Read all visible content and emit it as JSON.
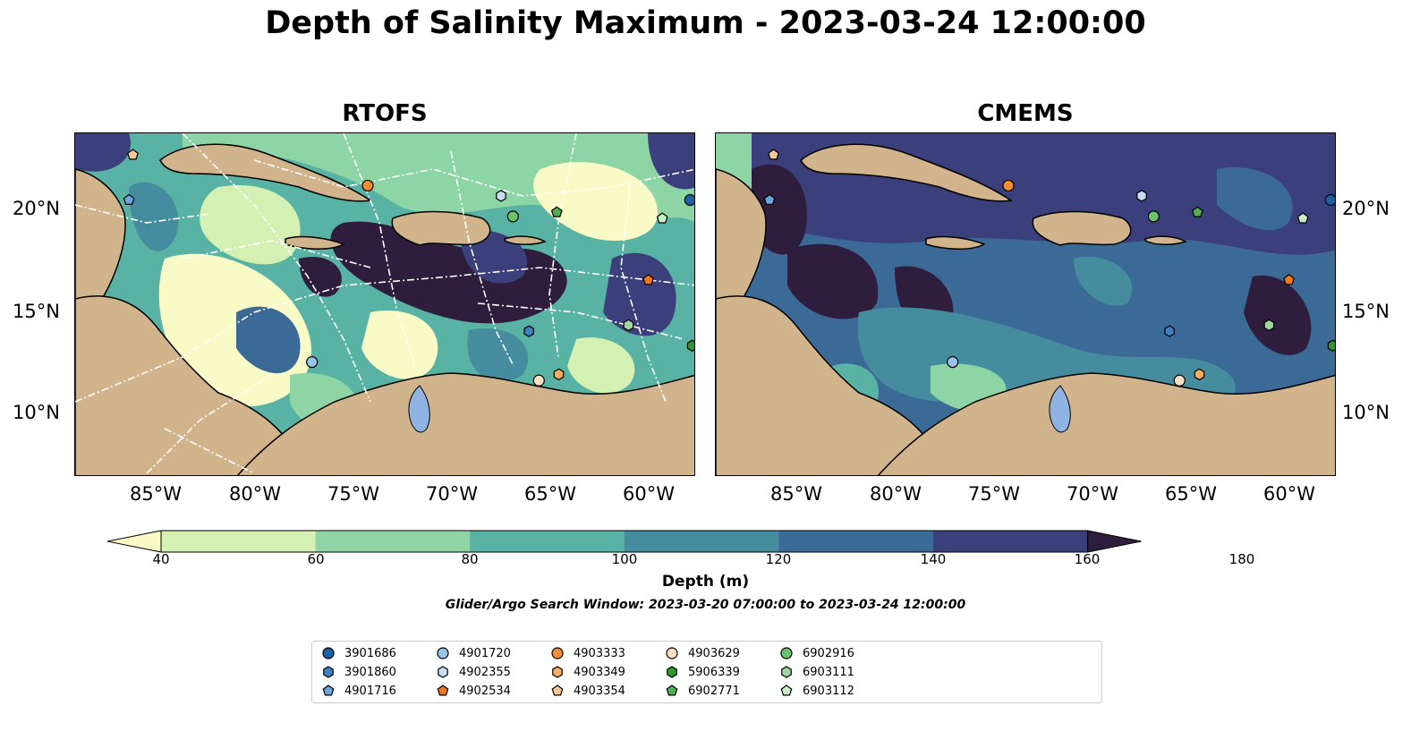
{
  "title": "Depth of Salinity Maximum - 2023-03-24 12:00:00",
  "panels": [
    {
      "title": "RTOFS"
    },
    {
      "title": "CMEMS"
    }
  ],
  "latitude_labels": [
    "20°N",
    "15°N",
    "10°N"
  ],
  "longitude_labels": [
    "85°W",
    "80°W",
    "75°W",
    "70°W",
    "65°W",
    "60°W"
  ],
  "colorbar": {
    "label": "Depth (m)",
    "ticks": [
      "40",
      "60",
      "80",
      "100",
      "120",
      "140",
      "160",
      "180"
    ],
    "colors": [
      "#f8fbc6",
      "#d5f0b3",
      "#8dd5a4",
      "#59b3a5",
      "#458c9f",
      "#3c6a96",
      "#3b3f7c",
      "#2e1d3d"
    ]
  },
  "search_window": "Glider/Argo Search Window: 2023-03-20 07:00:00 to 2023-03-24 12:00:00",
  "land_color": "#d2b48c",
  "legend": [
    {
      "id": "3901686",
      "marker": "circle",
      "color": "#1f5fa8"
    },
    {
      "id": "3901860",
      "marker": "hexagon",
      "color": "#3e82c4"
    },
    {
      "id": "4901716",
      "marker": "pentagon",
      "color": "#6aa6dc"
    },
    {
      "id": "4901720",
      "marker": "circle",
      "color": "#98c4ec"
    },
    {
      "id": "4902355",
      "marker": "hexagon",
      "color": "#c6def5"
    },
    {
      "id": "4902534",
      "marker": "pentagon",
      "color": "#f07818"
    },
    {
      "id": "4903333",
      "marker": "circle",
      "color": "#fa8c32"
    },
    {
      "id": "4903349",
      "marker": "hexagon",
      "color": "#fbad66"
    },
    {
      "id": "4903354",
      "marker": "pentagon",
      "color": "#fcc894"
    },
    {
      "id": "4903629",
      "marker": "circle",
      "color": "#fde0c4"
    },
    {
      "id": "5906339",
      "marker": "hexagon",
      "color": "#2a9a2a"
    },
    {
      "id": "6902771",
      "marker": "pentagon",
      "color": "#4fb04f"
    },
    {
      "id": "6902916",
      "marker": "circle",
      "color": "#6cc46c"
    },
    {
      "id": "6903111",
      "marker": "hexagon",
      "color": "#9ed89e"
    },
    {
      "id": "6903112",
      "marker": "pentagon",
      "color": "#c9efc9"
    }
  ],
  "float_positions": [
    {
      "id": "3901686",
      "lon": -58.2,
      "lat": 20.5
    },
    {
      "id": "3901860",
      "lon": -66.3,
      "lat": 14.1
    },
    {
      "id": "4901716",
      "lon": -86.4,
      "lat": 20.5
    },
    {
      "id": "4901720",
      "lon": -77.2,
      "lat": 12.6
    },
    {
      "id": "4902355",
      "lon": -67.7,
      "lat": 20.7
    },
    {
      "id": "4902534",
      "lon": -60.3,
      "lat": 16.6
    },
    {
      "id": "4903333",
      "lon": -74.4,
      "lat": 21.2
    },
    {
      "id": "4903349",
      "lon": -64.8,
      "lat": 12.0
    },
    {
      "id": "4903354",
      "lon": -86.2,
      "lat": 22.7
    },
    {
      "id": "4903629",
      "lon": -65.8,
      "lat": 11.7
    },
    {
      "id": "5906339",
      "lon": -58.1,
      "lat": 13.4
    },
    {
      "id": "6902771",
      "lon": -64.9,
      "lat": 19.9
    },
    {
      "id": "6902916",
      "lon": -67.1,
      "lat": 19.7
    },
    {
      "id": "6903111",
      "lon": -61.3,
      "lat": 14.4
    },
    {
      "id": "6903112",
      "lon": -59.6,
      "lat": 19.6
    }
  ]
}
